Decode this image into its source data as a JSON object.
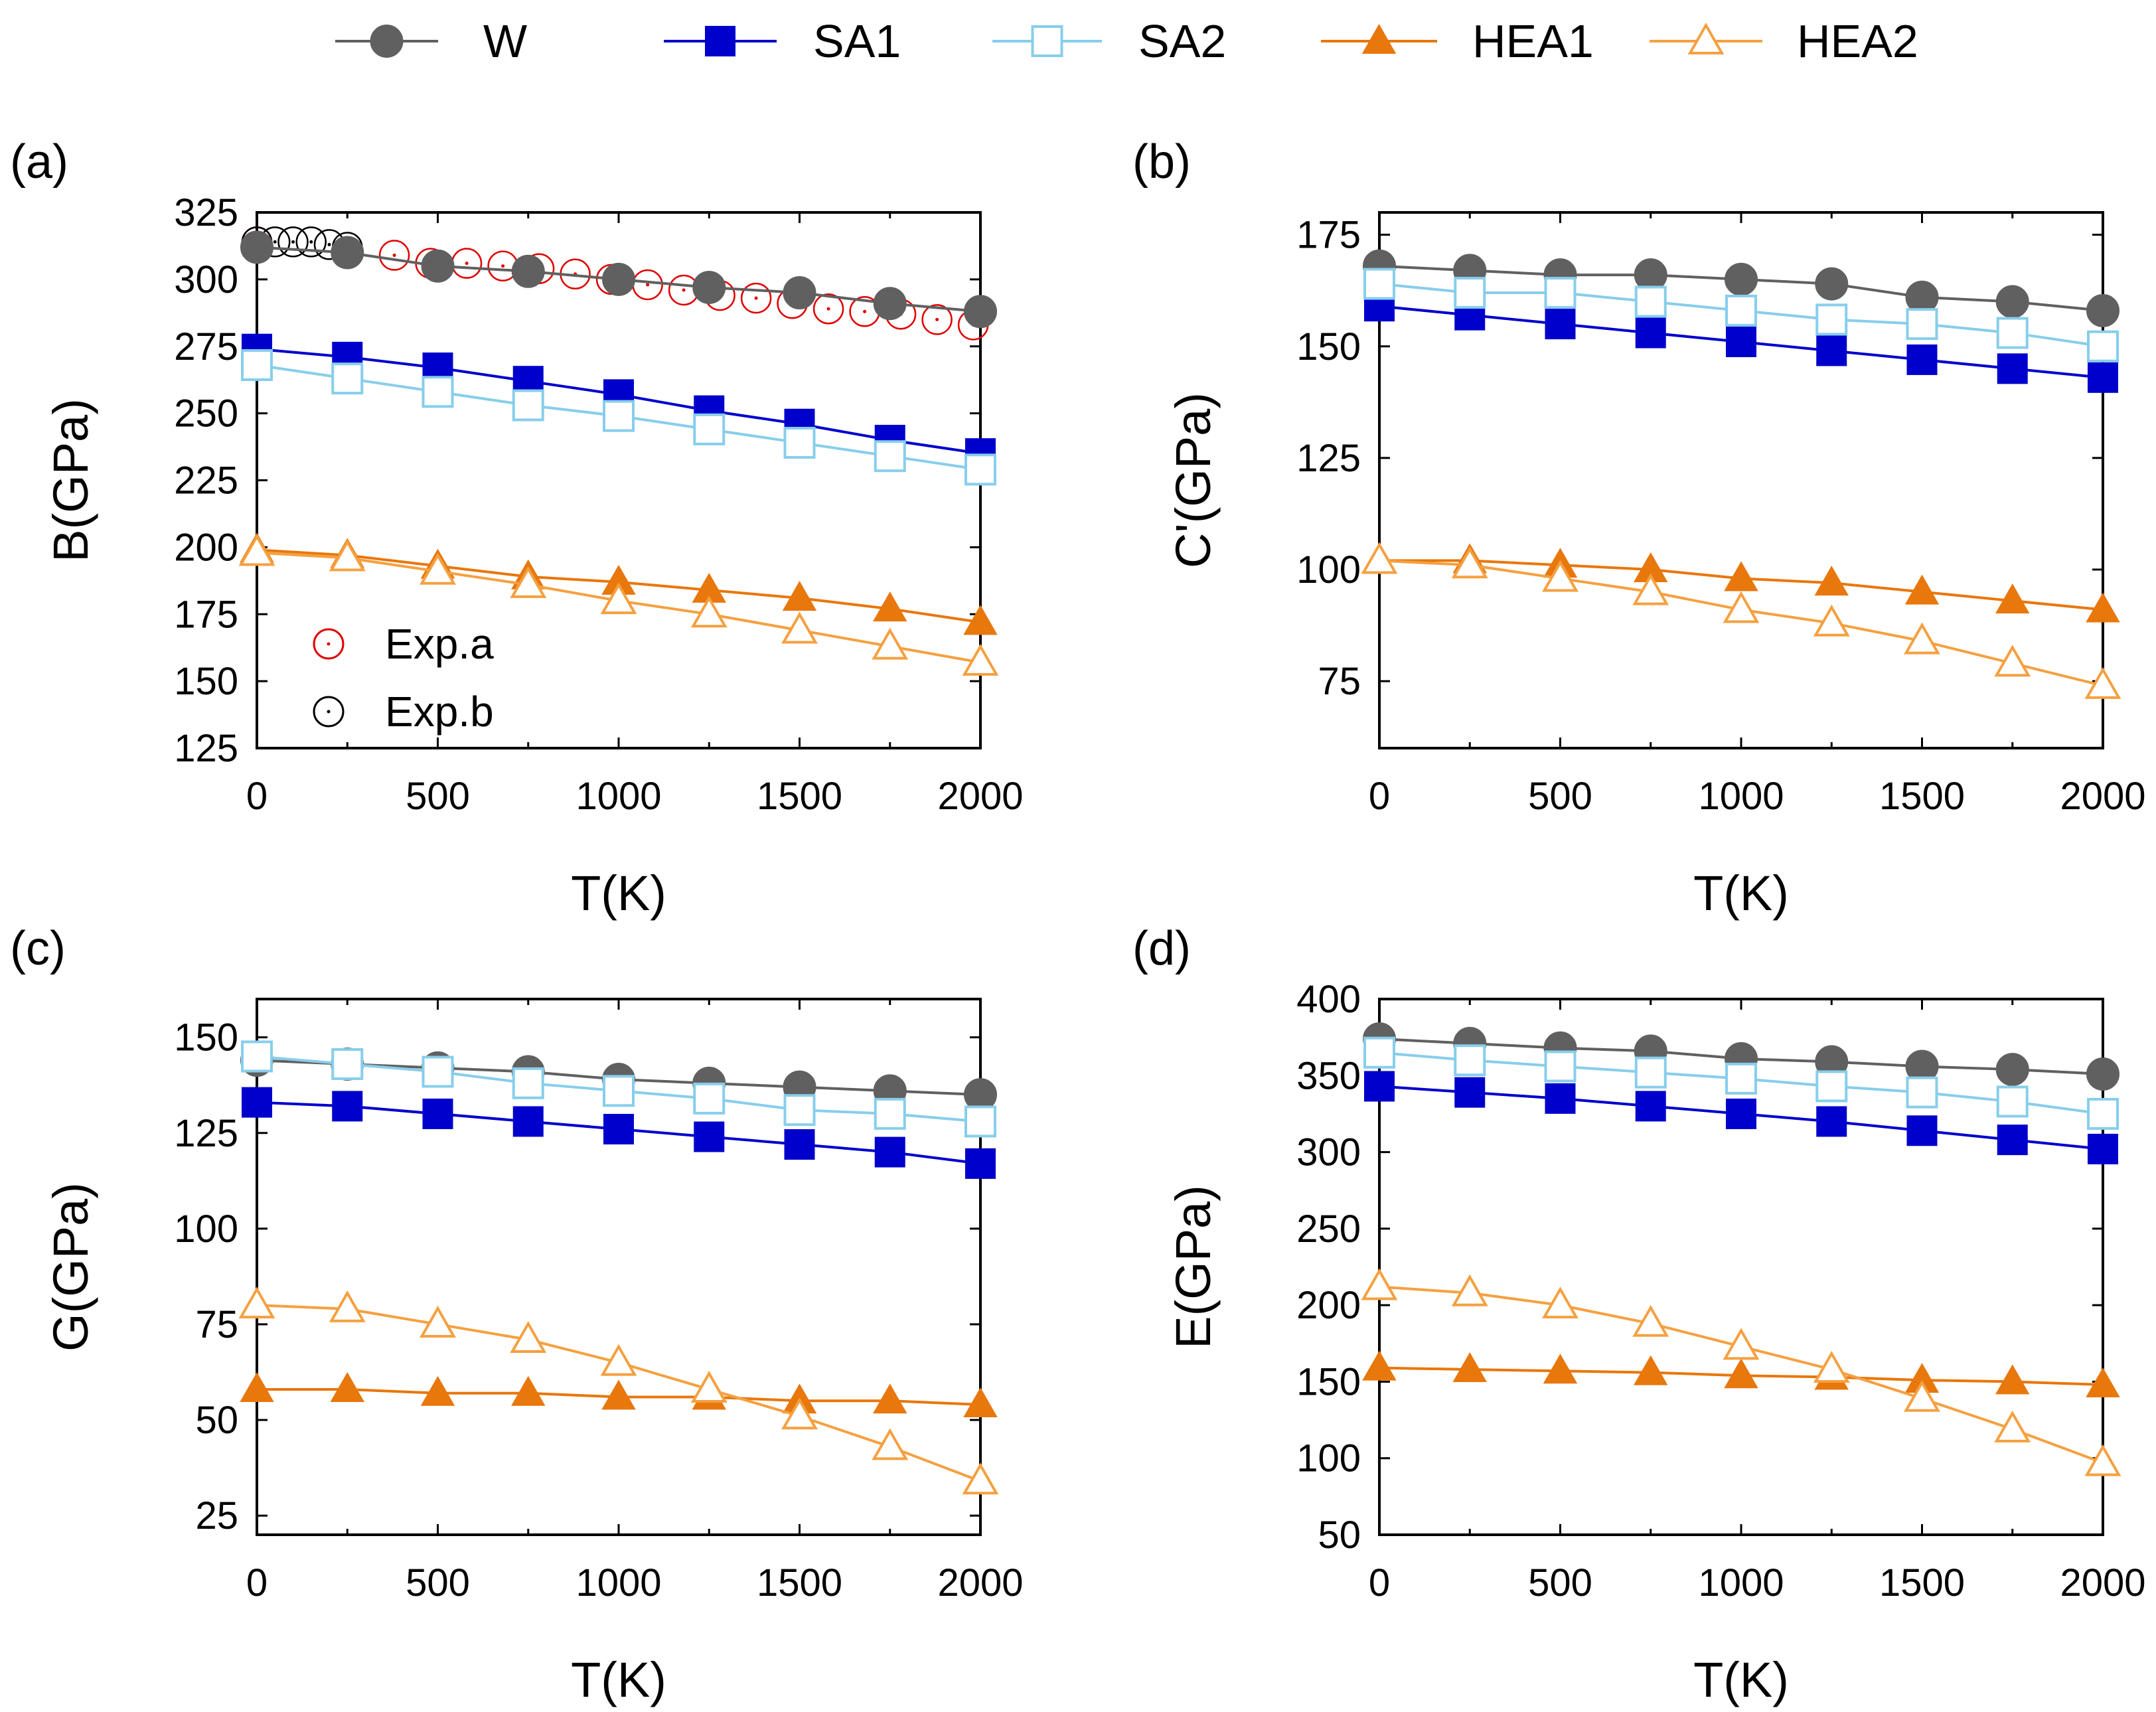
{
  "legend": [
    {
      "name": "W",
      "color": "#606060",
      "marker": "circle",
      "filled": true
    },
    {
      "name": "SA1",
      "color": "#0000cc",
      "marker": "square",
      "filled": true
    },
    {
      "name": "SA2",
      "color": "#87ceeb",
      "marker": "square",
      "filled": false
    },
    {
      "name": "HEA1",
      "color": "#e8770c",
      "marker": "triangle",
      "filled": true
    },
    {
      "name": "HEA2",
      "color": "#f5a040",
      "marker": "triangle",
      "filled": false
    }
  ],
  "chart_data": [
    {
      "type": "line",
      "panel_label": "(a)",
      "xlabel": "T(K)",
      "ylabel": "B(GPa)",
      "xlim": [
        0,
        2000
      ],
      "ylim": [
        125,
        325
      ],
      "xticks": [
        "0",
        "500",
        "1000",
        "1500",
        "2000"
      ],
      "yticks": [
        "125",
        "150",
        "175",
        "200",
        "225",
        "250",
        "275",
        "300",
        "325"
      ],
      "x": [
        0,
        250,
        500,
        750,
        1000,
        1250,
        1500,
        1750,
        2000
      ],
      "series": [
        {
          "name": "W",
          "values": [
            312,
            310,
            305,
            303,
            300,
            297,
            295,
            291,
            288
          ]
        },
        {
          "name": "SA1",
          "values": [
            274,
            271,
            267,
            262,
            257,
            251,
            246,
            240,
            235
          ]
        },
        {
          "name": "SA2",
          "values": [
            268,
            263,
            258,
            253,
            249,
            244,
            239,
            234,
            229
          ]
        },
        {
          "name": "HEA1",
          "values": [
            199,
            197,
            193,
            189,
            187,
            184,
            181,
            177,
            172
          ]
        },
        {
          "name": "HEA2",
          "values": [
            198,
            196,
            191,
            186,
            180,
            175,
            169,
            163,
            157
          ]
        }
      ],
      "experiments": [
        {
          "name": "Exp.a",
          "color": "#e00000",
          "x": [
            0,
            380,
            480,
            580,
            680,
            780,
            880,
            980,
            1080,
            1180,
            1280,
            1380,
            1480,
            1580,
            1680,
            1780,
            1880,
            1980
          ],
          "y": [
            314,
            309,
            306,
            306,
            305,
            304,
            302,
            300,
            298,
            296,
            294,
            293,
            291,
            289,
            288,
            287,
            285,
            283
          ]
        },
        {
          "name": "Exp.b",
          "color": "#000000",
          "x": [
            0,
            50,
            100,
            150,
            200,
            250
          ],
          "y": [
            314,
            314,
            314,
            314,
            313,
            312
          ]
        }
      ],
      "legend_position": "bottom-left"
    },
    {
      "type": "line",
      "panel_label": "(b)",
      "xlabel": "T(K)",
      "ylabel": "C'(GPa)",
      "xlim": [
        0,
        2000
      ],
      "ylim": [
        60,
        180
      ],
      "xticks": [
        "0",
        "500",
        "1000",
        "1500",
        "2000"
      ],
      "yticks": [
        "75",
        "100",
        "125",
        "150",
        "175"
      ],
      "x": [
        0,
        250,
        500,
        750,
        1000,
        1250,
        1500,
        1750,
        2000
      ],
      "series": [
        {
          "name": "W",
          "values": [
            168,
            167,
            166,
            166,
            165,
            164,
            161,
            160,
            158
          ]
        },
        {
          "name": "SA1",
          "values": [
            159,
            157,
            155,
            153,
            151,
            149,
            147,
            145,
            143
          ]
        },
        {
          "name": "SA2",
          "values": [
            164,
            162,
            162,
            160,
            158,
            156,
            155,
            153,
            150
          ]
        },
        {
          "name": "HEA1",
          "values": [
            102,
            102,
            101,
            100,
            98,
            97,
            95,
            93,
            91
          ]
        },
        {
          "name": "HEA2",
          "values": [
            102,
            101,
            98,
            95,
            91,
            88,
            84,
            79,
            74
          ]
        }
      ]
    },
    {
      "type": "line",
      "panel_label": "(c)",
      "xlabel": "T(K)",
      "ylabel": "G(GPa)",
      "xlim": [
        0,
        2000
      ],
      "ylim": [
        20,
        160
      ],
      "xticks": [
        "0",
        "500",
        "1000",
        "1500",
        "2000"
      ],
      "yticks": [
        "25",
        "50",
        "75",
        "100",
        "125",
        "150"
      ],
      "x": [
        0,
        250,
        500,
        750,
        1000,
        1250,
        1500,
        1750,
        2000
      ],
      "series": [
        {
          "name": "W",
          "values": [
            144,
            143,
            142,
            141,
            139,
            138,
            137,
            136,
            135
          ]
        },
        {
          "name": "SA1",
          "values": [
            133,
            132,
            130,
            128,
            126,
            124,
            122,
            120,
            117
          ]
        },
        {
          "name": "SA2",
          "values": [
            145,
            143,
            141,
            138,
            136,
            134,
            131,
            130,
            128
          ]
        },
        {
          "name": "HEA1",
          "values": [
            58,
            58,
            57,
            57,
            56,
            56,
            55,
            55,
            54
          ]
        },
        {
          "name": "HEA2",
          "values": [
            80,
            79,
            75,
            71,
            65,
            58,
            51,
            43,
            34
          ]
        }
      ]
    },
    {
      "type": "line",
      "panel_label": "(d)",
      "xlabel": "T(K)",
      "ylabel": "E(GPa)",
      "xlim": [
        0,
        2000
      ],
      "ylim": [
        50,
        400
      ],
      "xticks": [
        "0",
        "500",
        "1000",
        "1500",
        "2000"
      ],
      "yticks": [
        "50",
        "100",
        "150",
        "200",
        "250",
        "300",
        "350",
        "400"
      ],
      "x": [
        0,
        250,
        500,
        750,
        1000,
        1250,
        1500,
        1750,
        2000
      ],
      "series": [
        {
          "name": "W",
          "values": [
            374,
            371,
            368,
            366,
            361,
            359,
            356,
            354,
            351
          ]
        },
        {
          "name": "SA1",
          "values": [
            343,
            339,
            335,
            330,
            325,
            320,
            314,
            308,
            302
          ]
        },
        {
          "name": "SA2",
          "values": [
            365,
            360,
            356,
            352,
            348,
            343,
            339,
            333,
            325
          ]
        },
        {
          "name": "HEA1",
          "values": [
            159,
            158,
            157,
            156,
            154,
            153,
            151,
            150,
            148
          ]
        },
        {
          "name": "HEA2",
          "values": [
            212,
            208,
            200,
            188,
            173,
            158,
            139,
            119,
            97
          ]
        }
      ]
    }
  ]
}
